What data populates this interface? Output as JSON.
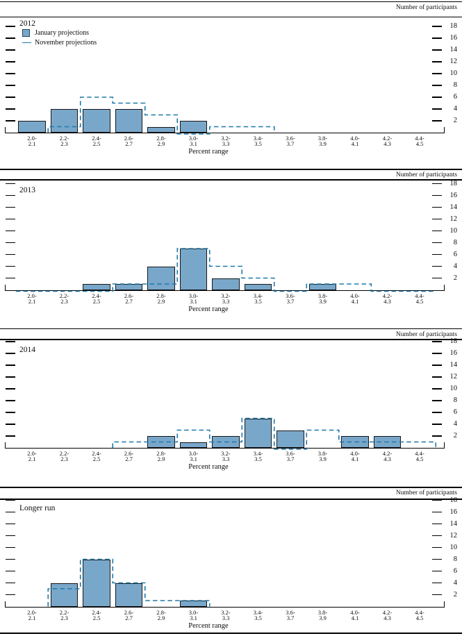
{
  "page": {
    "participants_label": "Number of participants",
    "percent_range_label": "Percent range"
  },
  "legend": {
    "january_label": "January projections",
    "november_label": "November projections"
  },
  "colors": {
    "bar_fill": "#79a7ca",
    "bar_border": "#161616",
    "dashed_line": "#1e79a9",
    "rule": "#000000"
  },
  "chart_data": {
    "type": "bar",
    "xlabel": "Percent range",
    "ylabel": "Number of participants",
    "ylim": [
      0,
      19
    ],
    "y_ticks": [
      2,
      4,
      6,
      8,
      10,
      12,
      14,
      16,
      18
    ],
    "grid": false,
    "legend_position": "top-left-first-panel",
    "categories": [
      [
        "2.0-",
        "2.1"
      ],
      [
        "2.2-",
        "2.3"
      ],
      [
        "2.4-",
        "2.5"
      ],
      [
        "2.6-",
        "2.7"
      ],
      [
        "2.8-",
        "2.9"
      ],
      [
        "3.0-",
        "3.1"
      ],
      [
        "3.2-",
        "3.3"
      ],
      [
        "3.4-",
        "3.5"
      ],
      [
        "3.6-",
        "3.7"
      ],
      [
        "3.8-",
        "3.9"
      ],
      [
        "4.0-",
        "4.1"
      ],
      [
        "4.2-",
        "4.3"
      ],
      [
        "4.4-",
        "4.5"
      ]
    ],
    "panels": [
      {
        "title": "2012",
        "series": [
          {
            "name": "January projections",
            "type": "bar",
            "values": [
              2,
              4,
              4,
              4,
              1,
              2,
              0,
              0,
              0,
              0,
              0,
              0,
              0
            ]
          },
          {
            "name": "November projections",
            "type": "dashed-step",
            "values": [
              null,
              1,
              6,
              5,
              3,
              0,
              1,
              1,
              null,
              null,
              null,
              null,
              null
            ]
          }
        ]
      },
      {
        "title": "2013",
        "series": [
          {
            "name": "January projections",
            "type": "bar",
            "values": [
              0,
              0,
              1,
              1,
              4,
              7,
              2,
              1,
              0,
              1,
              0,
              0,
              0
            ]
          },
          {
            "name": "November projections",
            "type": "dashed-step",
            "values": [
              0,
              0,
              0,
              1,
              1,
              7,
              4,
              2,
              0,
              1,
              1,
              0,
              0
            ]
          }
        ]
      },
      {
        "title": "2014",
        "series": [
          {
            "name": "January projections",
            "type": "bar",
            "values": [
              0,
              0,
              0,
              0,
              2,
              1,
              2,
              5,
              3,
              0,
              2,
              2,
              0
            ]
          },
          {
            "name": "November projections",
            "type": "dashed-step",
            "values": [
              null,
              null,
              null,
              1,
              1,
              3,
              1,
              5,
              0,
              3,
              1,
              1,
              1
            ]
          }
        ]
      },
      {
        "title": "Longer run",
        "series": [
          {
            "name": "January projections",
            "type": "bar",
            "values": [
              0,
              4,
              8,
              4,
              0,
              1,
              0,
              0,
              0,
              0,
              0,
              0,
              0
            ]
          },
          {
            "name": "November projections",
            "type": "dashed-step",
            "values": [
              null,
              3,
              8,
              4,
              1,
              1,
              null,
              null,
              null,
              null,
              null,
              null,
              null
            ]
          }
        ]
      }
    ]
  }
}
